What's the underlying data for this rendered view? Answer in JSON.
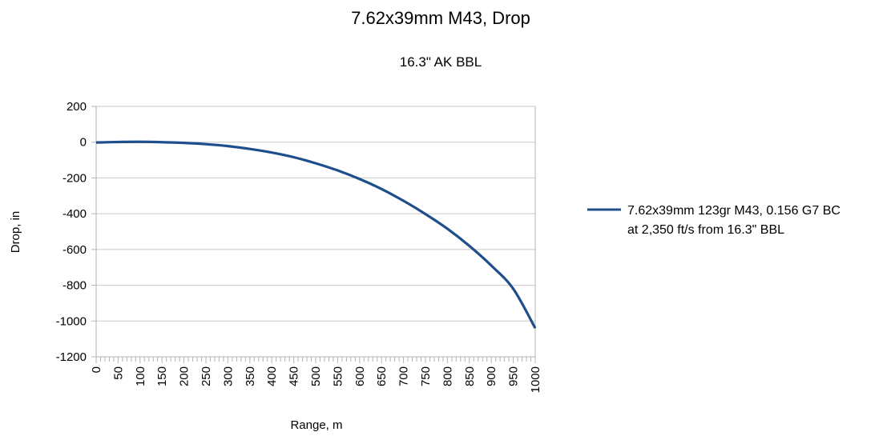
{
  "chart_data": {
    "type": "line",
    "title": "7.62x39mm M43, Drop",
    "subtitle": "16.3\" AK BBL",
    "xlabel": "Range, m",
    "ylabel": "Drop, in",
    "xlim": [
      0,
      1000
    ],
    "ylim": [
      -1200,
      200
    ],
    "x_major_step": 50,
    "x_minor_step": 10,
    "y_step": 200,
    "grid": "horizontal",
    "legend_position": "right",
    "x_ticks": [
      0,
      50,
      100,
      150,
      200,
      250,
      300,
      350,
      400,
      450,
      500,
      550,
      600,
      650,
      700,
      750,
      800,
      850,
      900,
      950,
      1000
    ],
    "y_ticks": [
      200,
      0,
      -200,
      -400,
      -600,
      -800,
      -1000,
      -1200
    ],
    "series": [
      {
        "name_line1": "7.62x39mm 123gr M43, 0.156 G7 BC",
        "name_line2": "at 2,350 ft/s from 16.3\" BBL",
        "color": "#1f4e8c",
        "x": [
          0,
          50,
          100,
          150,
          200,
          250,
          300,
          350,
          400,
          450,
          500,
          550,
          600,
          650,
          700,
          750,
          800,
          850,
          900,
          950,
          1000
        ],
        "y": [
          -2,
          1,
          2,
          0,
          -4,
          -11,
          -22,
          -38,
          -58,
          -84,
          -118,
          -158,
          -206,
          -262,
          -328,
          -402,
          -484,
          -580,
          -690,
          -820,
          -1040
        ]
      }
    ]
  }
}
